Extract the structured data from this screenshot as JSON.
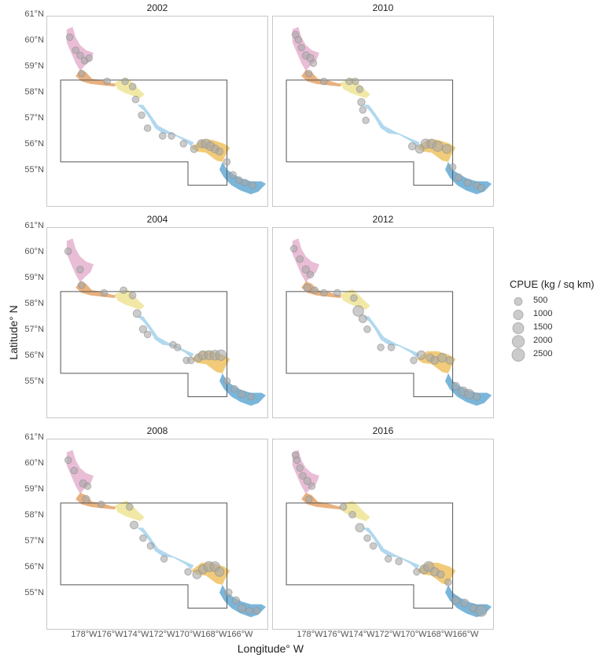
{
  "chart_data": {
    "type": "map",
    "xlabel": "Longitude° W",
    "ylabel": "Latitude° N",
    "x_ticks": [
      "178°W",
      "176°W",
      "174°W",
      "172°W",
      "170°W",
      "168°W",
      "166°W"
    ],
    "y_ticks": [
      "61°N",
      "60°N",
      "59°N",
      "58°N",
      "57°N",
      "56°N",
      "55°N"
    ],
    "lon_range": [
      -180.2,
      -165.5
    ],
    "lat_range": [
      53.8,
      61.1
    ],
    "colors": {
      "pink": "#e7b6d1",
      "orange": "#e6a871",
      "yellow": "#efe69b",
      "lightblue": "#a9d4ec",
      "gold": "#efc56a",
      "blue": "#6baed6",
      "point": "#a8a8a8",
      "box": "#555555"
    },
    "box_outline": [
      [
        -179.3,
        58.65
      ],
      [
        -168.2,
        58.65
      ],
      [
        -168.2,
        54.6
      ],
      [
        -170.8,
        54.6
      ],
      [
        -170.8,
        55.5
      ],
      [
        -179.3,
        55.5
      ]
    ],
    "legend": {
      "title": "CPUE (kg / sq km)",
      "entries": [
        {
          "label": "500",
          "value": 500
        },
        {
          "label": "1000",
          "value": 1000
        },
        {
          "label": "1500",
          "value": 1500
        },
        {
          "label": "2000",
          "value": 2000
        },
        {
          "label": "2500",
          "value": 2500
        }
      ]
    },
    "panels": [
      {
        "title": "2002",
        "points": [
          [
            -178.7,
            60.3,
            300
          ],
          [
            -178.3,
            59.8,
            300
          ],
          [
            -178.0,
            59.6,
            300
          ],
          [
            -177.7,
            59.4,
            300
          ],
          [
            -177.4,
            59.5,
            300
          ],
          [
            -177.9,
            58.9,
            300
          ],
          [
            -176.2,
            58.6,
            300
          ],
          [
            -175.0,
            58.6,
            300
          ],
          [
            -174.5,
            58.4,
            300
          ],
          [
            -174.3,
            57.9,
            300
          ],
          [
            -173.9,
            57.3,
            300
          ],
          [
            -173.5,
            56.8,
            300
          ],
          [
            -172.5,
            56.5,
            300
          ],
          [
            -171.9,
            56.5,
            300
          ],
          [
            -171.1,
            56.2,
            300
          ],
          [
            -170.4,
            56.0,
            400
          ],
          [
            -169.9,
            56.2,
            600
          ],
          [
            -169.6,
            56.2,
            900
          ],
          [
            -169.3,
            56.1,
            700
          ],
          [
            -169.0,
            56.0,
            500
          ],
          [
            -168.7,
            55.9,
            400
          ],
          [
            -168.2,
            55.5,
            300
          ],
          [
            -167.8,
            55.0,
            300
          ],
          [
            -167.4,
            54.8,
            300
          ],
          [
            -167.0,
            54.7,
            300
          ],
          [
            -166.5,
            54.6,
            300
          ]
        ]
      },
      {
        "title": "2010",
        "points": [
          [
            -178.7,
            60.4,
            300
          ],
          [
            -178.5,
            60.2,
            300
          ],
          [
            -178.3,
            59.9,
            300
          ],
          [
            -178.0,
            59.6,
            400
          ],
          [
            -177.7,
            59.5,
            400
          ],
          [
            -177.5,
            59.3,
            300
          ],
          [
            -177.8,
            58.9,
            300
          ],
          [
            -176.8,
            58.6,
            300
          ],
          [
            -175.1,
            58.6,
            300
          ],
          [
            -174.7,
            58.6,
            300
          ],
          [
            -174.4,
            58.3,
            300
          ],
          [
            -174.3,
            57.8,
            400
          ],
          [
            -174.2,
            57.5,
            300
          ],
          [
            -174.0,
            57.1,
            300
          ],
          [
            -170.9,
            56.1,
            400
          ],
          [
            -170.4,
            56.0,
            700
          ],
          [
            -170.0,
            56.2,
            1000
          ],
          [
            -169.6,
            56.2,
            900
          ],
          [
            -169.2,
            56.1,
            1200
          ],
          [
            -168.6,
            56.0,
            800
          ],
          [
            -168.2,
            55.3,
            300
          ],
          [
            -167.8,
            54.9,
            400
          ],
          [
            -167.2,
            54.7,
            400
          ],
          [
            -166.6,
            54.6,
            300
          ],
          [
            -166.3,
            54.5,
            300
          ]
        ]
      },
      {
        "title": "2004",
        "points": [
          [
            -178.8,
            60.2,
            300
          ],
          [
            -178.0,
            59.5,
            300
          ],
          [
            -177.9,
            58.9,
            300
          ],
          [
            -176.4,
            58.6,
            300
          ],
          [
            -175.1,
            58.7,
            300
          ],
          [
            -174.5,
            58.5,
            300
          ],
          [
            -174.2,
            57.8,
            500
          ],
          [
            -173.8,
            57.2,
            400
          ],
          [
            -173.5,
            57.0,
            300
          ],
          [
            -171.8,
            56.6,
            300
          ],
          [
            -171.5,
            56.5,
            300
          ],
          [
            -170.9,
            56.0,
            300
          ],
          [
            -170.6,
            56.0,
            300
          ],
          [
            -170.1,
            56.1,
            500
          ],
          [
            -169.8,
            56.2,
            800
          ],
          [
            -169.4,
            56.2,
            900
          ],
          [
            -169.0,
            56.2,
            1100
          ],
          [
            -168.6,
            56.2,
            1300
          ],
          [
            -168.2,
            55.2,
            300
          ],
          [
            -167.7,
            54.9,
            300
          ],
          [
            -167.2,
            54.7,
            400
          ],
          [
            -166.6,
            54.6,
            300
          ]
        ]
      },
      {
        "title": "2012",
        "points": [
          [
            -178.8,
            60.3,
            300
          ],
          [
            -178.4,
            59.9,
            300
          ],
          [
            -178.0,
            59.5,
            400
          ],
          [
            -177.7,
            59.3,
            300
          ],
          [
            -177.9,
            58.8,
            400
          ],
          [
            -177.4,
            58.7,
            300
          ],
          [
            -176.8,
            58.6,
            300
          ],
          [
            -175.9,
            58.6,
            300
          ],
          [
            -174.8,
            58.4,
            300
          ],
          [
            -174.5,
            57.9,
            1400
          ],
          [
            -174.2,
            57.6,
            500
          ],
          [
            -173.9,
            57.2,
            300
          ],
          [
            -173.0,
            56.5,
            300
          ],
          [
            -172.3,
            56.5,
            300
          ],
          [
            -170.8,
            56.0,
            300
          ],
          [
            -170.3,
            56.2,
            700
          ],
          [
            -169.7,
            56.1,
            500
          ],
          [
            -169.4,
            56.0,
            500
          ],
          [
            -168.9,
            56.1,
            800
          ],
          [
            -168.4,
            56.0,
            400
          ],
          [
            -168.0,
            55.0,
            500
          ],
          [
            -167.5,
            54.8,
            900
          ],
          [
            -167.1,
            54.7,
            1000
          ],
          [
            -166.6,
            54.6,
            400
          ]
        ]
      },
      {
        "title": "2008",
        "points": [
          [
            -178.8,
            60.3,
            300
          ],
          [
            -178.4,
            59.9,
            300
          ],
          [
            -177.8,
            59.4,
            400
          ],
          [
            -177.5,
            59.3,
            300
          ],
          [
            -177.6,
            58.8,
            400
          ],
          [
            -176.6,
            58.6,
            300
          ],
          [
            -174.7,
            58.5,
            300
          ],
          [
            -174.4,
            57.8,
            500
          ],
          [
            -173.8,
            57.3,
            300
          ],
          [
            -173.3,
            57.0,
            300
          ],
          [
            -172.4,
            56.5,
            300
          ],
          [
            -170.8,
            56.0,
            300
          ],
          [
            -170.2,
            55.9,
            700
          ],
          [
            -169.8,
            56.1,
            800
          ],
          [
            -169.4,
            56.2,
            1200
          ],
          [
            -169.0,
            56.2,
            1100
          ],
          [
            -168.7,
            56.0,
            900
          ],
          [
            -168.1,
            55.2,
            400
          ],
          [
            -167.6,
            54.9,
            400
          ],
          [
            -167.2,
            54.6,
            500
          ],
          [
            -166.7,
            54.5,
            300
          ],
          [
            -166.2,
            54.5,
            300
          ]
        ]
      },
      {
        "title": "2016",
        "points": [
          [
            -178.7,
            60.5,
            300
          ],
          [
            -178.6,
            60.3,
            300
          ],
          [
            -178.4,
            60.0,
            300
          ],
          [
            -178.2,
            59.7,
            300
          ],
          [
            -177.9,
            59.5,
            400
          ],
          [
            -177.6,
            59.3,
            300
          ],
          [
            -177.8,
            58.8,
            300
          ],
          [
            -175.5,
            58.5,
            300
          ],
          [
            -174.9,
            58.2,
            300
          ],
          [
            -174.4,
            57.7,
            700
          ],
          [
            -173.9,
            57.3,
            300
          ],
          [
            -173.5,
            57.0,
            300
          ],
          [
            -172.5,
            56.5,
            300
          ],
          [
            -171.8,
            56.4,
            300
          ],
          [
            -170.6,
            56.0,
            300
          ],
          [
            -170.1,
            56.1,
            800
          ],
          [
            -169.8,
            56.2,
            1200
          ],
          [
            -169.4,
            56.0,
            700
          ],
          [
            -169.0,
            55.9,
            400
          ],
          [
            -168.5,
            55.6,
            300
          ],
          [
            -168.0,
            54.9,
            500
          ],
          [
            -167.4,
            54.8,
            500
          ],
          [
            -166.8,
            54.6,
            500
          ],
          [
            -166.3,
            54.5,
            1600
          ]
        ]
      }
    ]
  }
}
